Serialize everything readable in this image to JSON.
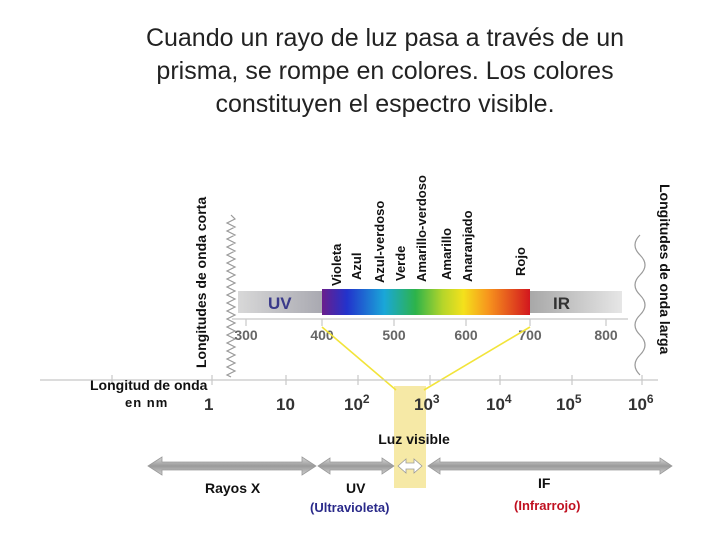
{
  "title": {
    "line1": "Cuando un rayo de luz pasa a través de un",
    "line2": "prisma, se rompe en colores. Los colores",
    "line3": "constituyen el espectro visible."
  },
  "side_labels": {
    "short": "Longitudes de onda corta",
    "long": "Longitudes de onda larga"
  },
  "color_names": [
    "Violeta",
    "Azul",
    "Azul-verdoso",
    "Verde",
    "Amarillo-verdoso",
    "Amarillo",
    "Anaranjado",
    "Rojo"
  ],
  "spectrum_bar": {
    "uv_label": "UV",
    "ir_label": "IR"
  },
  "nm_ticks": [
    "300",
    "400",
    "500",
    "600",
    "700",
    "800"
  ],
  "wavelength": {
    "label": "Longitud de onda",
    "unit": "en nm",
    "scale": [
      {
        "base": "1",
        "exp": ""
      },
      {
        "base": "10",
        "exp": ""
      },
      {
        "base": "10",
        "exp": "2"
      },
      {
        "base": "10",
        "exp": "3"
      },
      {
        "base": "10",
        "exp": "4"
      },
      {
        "base": "10",
        "exp": "5"
      },
      {
        "base": "10",
        "exp": "6"
      }
    ]
  },
  "visible_label": "Luz visible",
  "regions": {
    "xrays": "Rayos X",
    "uv": "UV",
    "uv_note": "(Ultravioleta)",
    "ir": "IF",
    "ir_note": "(Infrarrojo)"
  },
  "colors": {
    "text": "#111111",
    "note_uv": "#2a2a8a",
    "note_ir": "#c01020",
    "visible_band": "#f6e9a6",
    "funnel": "#f2e43a",
    "arrow": "#8a8a8a"
  }
}
